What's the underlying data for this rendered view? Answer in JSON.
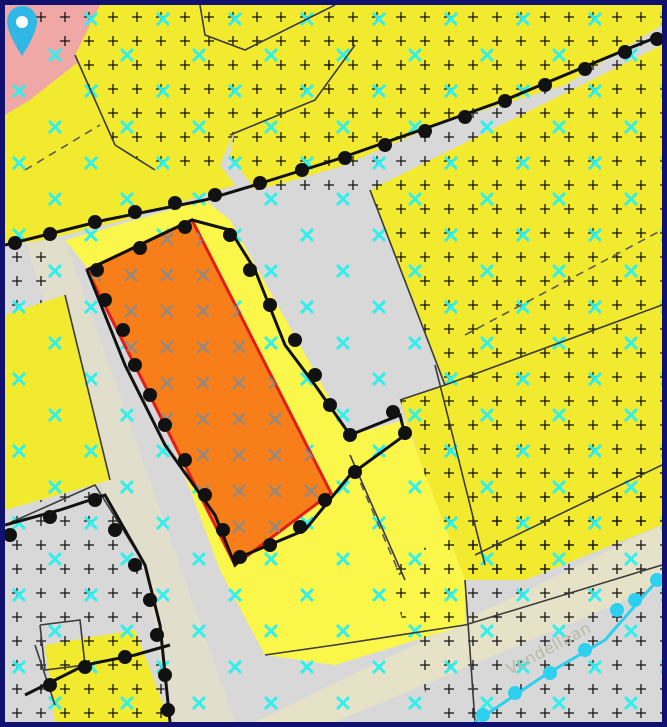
{
  "map": {
    "street_label": "Vondellaan",
    "colors": {
      "frame": "#10106e",
      "road": "#d8d8d8",
      "road_strip": "#e6e2c8",
      "zone_yellow": "#f2ea2e",
      "zone_light_yellow": "#fbf74a",
      "zone_pink": "#f0a8a6",
      "highlighted_parcel_fill": "#f77e19",
      "highlighted_parcel_outline": "#e31b1b",
      "boundary_line": "#111111",
      "cross_marker": "#2ef0ee",
      "plus_marker": "#111111",
      "water_line": "#2ed0f0",
      "location_pin": "#2fb7e6"
    },
    "icons": {
      "location_pin": "location-pin-icon",
      "cross_marker": "cross-marker-icon",
      "plus_marker": "plus-marker-icon"
    }
  }
}
